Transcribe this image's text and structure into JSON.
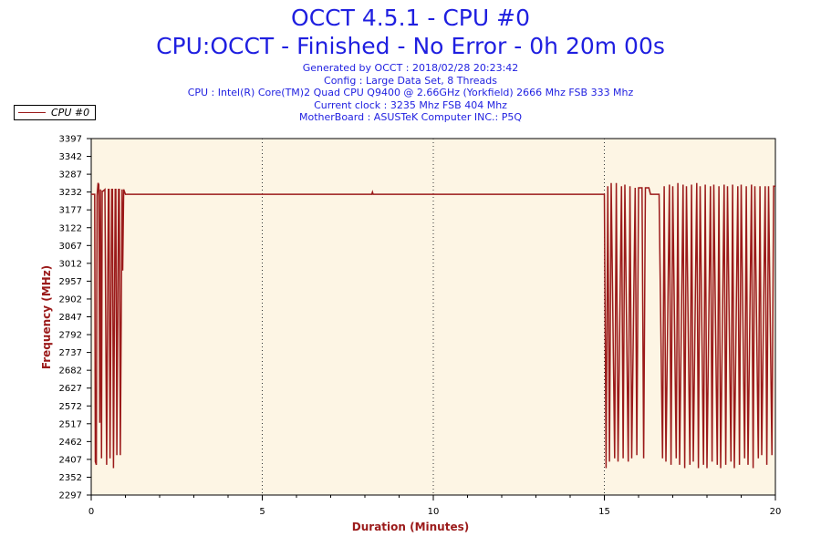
{
  "title_line1": "OCCT 4.5.1 - CPU #0",
  "title_line2": "CPU:OCCT - Finished - No Error - 0h 20m 00s",
  "info_lines": [
    "Generated by OCCT : 2018/02/28 20:23:42",
    "Config : Large Data Set, 8 Threads",
    "CPU : Intel(R) Core(TM)2 Quad CPU Q9400 @ 2.66GHz (Yorkfield) 2666 Mhz FSB 333 Mhz",
    "Current clock : 3235 Mhz FSB 404 Mhz",
    "MotherBoard : ASUSTeK Computer INC.: P5Q"
  ],
  "colors": {
    "title": "#1f1fe0",
    "series": "#9b1a1a",
    "plot_bg": "#fdf5e4"
  },
  "chart_data": {
    "type": "line",
    "xlabel": "Duration (Minutes)",
    "ylabel": "Frequency (MHz)",
    "xlim": [
      0,
      20
    ],
    "ylim": [
      2297,
      3397
    ],
    "x_ticks": [
      0,
      5,
      10,
      15,
      20
    ],
    "y_ticks": [
      2297,
      2352,
      2407,
      2462,
      2517,
      2572,
      2627,
      2682,
      2737,
      2792,
      2847,
      2902,
      2957,
      3012,
      3067,
      3122,
      3177,
      3232,
      3287,
      3342,
      3397
    ],
    "grid": "dotted vertical at major x ticks",
    "legend": "top-left",
    "series": [
      {
        "name": "CPU #0",
        "x": [
          0,
          0.1,
          0.12,
          0.15,
          0.17,
          0.2,
          0.22,
          0.25,
          0.27,
          0.3,
          0.32,
          0.35,
          0.4,
          0.45,
          0.5,
          0.52,
          0.55,
          0.6,
          0.62,
          0.65,
          0.7,
          0.72,
          0.75,
          0.8,
          0.82,
          0.85,
          0.9,
          0.92,
          0.95,
          1.0,
          1.02,
          1.05,
          1.1,
          1.2,
          8.2,
          8.22,
          8.24,
          15.0,
          15.05,
          15.1,
          15.15,
          15.2,
          15.3,
          15.35,
          15.4,
          15.5,
          15.55,
          15.6,
          15.7,
          15.75,
          15.8,
          15.9,
          15.95,
          16.0,
          16.1,
          16.15,
          16.2,
          16.3,
          16.35,
          16.4,
          16.5,
          16.6,
          16.7,
          16.75,
          16.8,
          16.9,
          16.95,
          17.0,
          17.1,
          17.15,
          17.2,
          17.3,
          17.35,
          17.4,
          17.5,
          17.55,
          17.6,
          17.7,
          17.75,
          17.8,
          17.9,
          17.95,
          18.0,
          18.1,
          18.15,
          18.2,
          18.3,
          18.35,
          18.4,
          18.5,
          18.55,
          18.6,
          18.7,
          18.75,
          18.8,
          18.9,
          18.95,
          19.0,
          19.1,
          19.15,
          19.2,
          19.3,
          19.35,
          19.4,
          19.5,
          19.55,
          19.6,
          19.7,
          19.75,
          19.8,
          19.9,
          19.95,
          20.0
        ],
        "values": [
          3225,
          3225,
          2400,
          2390,
          3220,
          3260,
          3255,
          2520,
          3240,
          2410,
          3235,
          3235,
          3240,
          2390,
          3240,
          3240,
          2410,
          3240,
          3240,
          2380,
          3240,
          3240,
          2420,
          3240,
          3240,
          2420,
          3240,
          2990,
          3240,
          3225,
          3225,
          3225,
          3225,
          3225,
          3225,
          3232,
          3225,
          3225,
          2380,
          3250,
          2400,
          3260,
          2410,
          3260,
          2400,
          3250,
          2410,
          3255,
          2400,
          3250,
          2410,
          3245,
          2420,
          3245,
          3245,
          2410,
          3245,
          3245,
          3225,
          3225,
          3225,
          3225,
          2410,
          3250,
          2400,
          3255,
          2390,
          3250,
          2410,
          3260,
          2390,
          3255,
          2380,
          3250,
          2390,
          3255,
          2400,
          3260,
          2380,
          3250,
          2390,
          3255,
          2380,
          3250,
          2400,
          3255,
          2390,
          3250,
          2380,
          3255,
          2390,
          3250,
          2400,
          3255,
          2380,
          3250,
          2390,
          3255,
          2410,
          3250,
          2390,
          3255,
          2380,
          3250,
          2410,
          3250,
          2420,
          3250,
          2390,
          3250,
          2420,
          3250,
          3250
        ]
      }
    ]
  }
}
